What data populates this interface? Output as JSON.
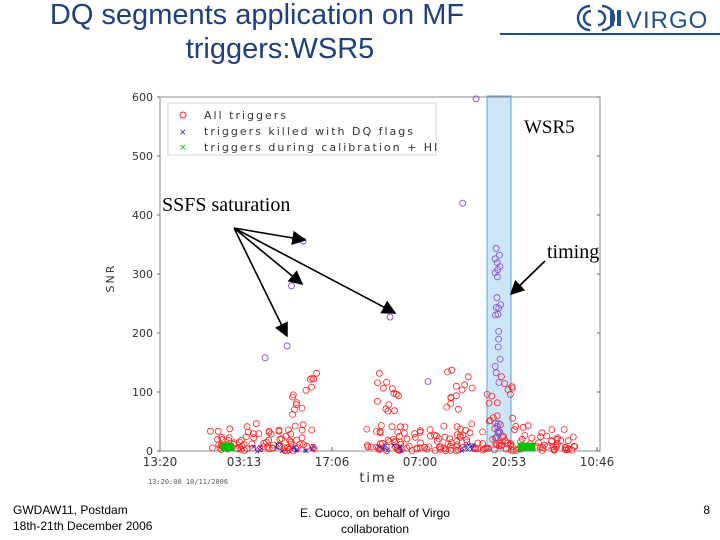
{
  "slide": {
    "title_line1": "DQ segments application on MF",
    "title_line2": "triggers:WSR5",
    "logo_text": "VIRGO",
    "footer_left_line1": "GWDAW11,  Postdam",
    "footer_left_line2": "18th-21th December 2006",
    "footer_mid_line1": "E. Cuoco, on behalf of Virgo",
    "footer_mid_line2": "collaboration",
    "page_number": "8"
  },
  "annotations": {
    "wsr5": "WSR5",
    "ssfs": "SSFS saturation",
    "timing": "timing"
  },
  "colors": {
    "title": "#1f3f7f",
    "all_triggers": "#ff2020",
    "killed": "#2020d0",
    "calibration": "#00c000",
    "wsr5_band": "#cce6f7"
  },
  "chart_data": {
    "type": "scatter",
    "ylabel": "SNR",
    "xlabel": "time",
    "x_tick_labels": [
      "13:20",
      "03:13",
      "17:06",
      "07:00",
      "20:53",
      "10:46"
    ],
    "y_ticks": [
      0,
      100,
      200,
      300,
      400,
      500,
      600
    ],
    "ylim": [
      0,
      600
    ],
    "x_origin_label": "13:20:00 10/11/2006",
    "legend": [
      "All triggers",
      "triggers killed with DQ flags",
      "triggers during calibration + HI"
    ],
    "legend_placement": "top-left",
    "highlight_band_label": "WSR5",
    "notable_points": [
      {
        "x_index": 1.6,
        "y": 358,
        "series": "All triggers"
      },
      {
        "x_index": 1.67,
        "y": 356,
        "series": "All triggers"
      },
      {
        "x_index": 1.54,
        "y": 280,
        "series": "All triggers"
      },
      {
        "x_index": 1.49,
        "y": 178,
        "series": "All triggers"
      },
      {
        "x_index": 1.24,
        "y": 158,
        "series": "All triggers"
      },
      {
        "x_index": 2.66,
        "y": 227,
        "series": "All triggers"
      },
      {
        "x_index": 3.09,
        "y": 118,
        "series": "All triggers"
      },
      {
        "x_index": 3.63,
        "y": 597,
        "series": "All triggers"
      },
      {
        "x_index": 3.48,
        "y": 420,
        "series": "All triggers"
      }
    ]
  }
}
